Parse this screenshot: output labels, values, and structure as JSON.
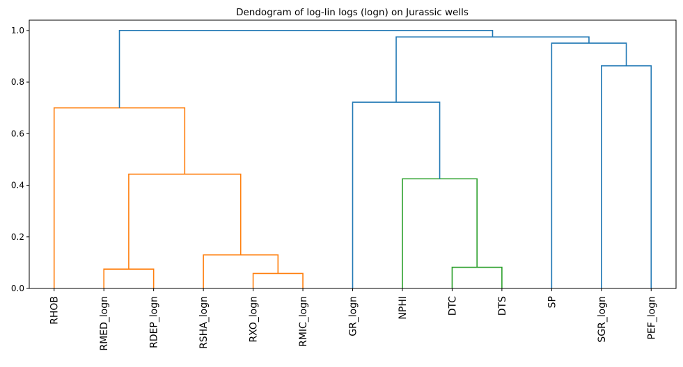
{
  "chart_data": {
    "type": "dendrogram",
    "title": "Dendogram of log-lin logs (logn) on Jurassic wells",
    "xlabel": "",
    "ylabel": "",
    "ylim": [
      0,
      1.04
    ],
    "yticks": [
      "0.0",
      "0.2",
      "0.4",
      "0.6",
      "0.8",
      "1.0"
    ],
    "ytick_values": [
      0,
      0.2,
      0.4,
      0.6,
      0.8,
      1.0
    ],
    "grid": false,
    "leaves": [
      "RHOB",
      "RMED_logn",
      "RDEP_logn",
      "RSHA_logn",
      "RXO_logn",
      "RMIC_logn",
      "GR_logn",
      "NPHI",
      "DTC",
      "DTS",
      "SP",
      "SGR_logn",
      "PEF_logn"
    ],
    "colors": {
      "orange": "#ff7f0e",
      "green": "#2ca02c",
      "blue": "#1f77b4"
    },
    "links": [
      {
        "id": "n0",
        "left": {
          "leaf": 1
        },
        "right": {
          "leaf": 2
        },
        "height": 0.075,
        "color": "orange"
      },
      {
        "id": "n1",
        "left": {
          "leaf": 4
        },
        "right": {
          "leaf": 5
        },
        "height": 0.058,
        "color": "orange"
      },
      {
        "id": "n2",
        "left": {
          "leaf": 3
        },
        "right": {
          "node": "n1"
        },
        "height": 0.13,
        "color": "orange"
      },
      {
        "id": "n3",
        "left": {
          "node": "n0"
        },
        "right": {
          "node": "n2"
        },
        "height": 0.443,
        "color": "orange"
      },
      {
        "id": "n4",
        "left": {
          "leaf": 0
        },
        "right": {
          "node": "n3"
        },
        "height": 0.7,
        "color": "orange"
      },
      {
        "id": "n5",
        "left": {
          "leaf": 8
        },
        "right": {
          "leaf": 9
        },
        "height": 0.082,
        "color": "green"
      },
      {
        "id": "n6",
        "left": {
          "leaf": 7
        },
        "right": {
          "node": "n5"
        },
        "height": 0.425,
        "color": "green"
      },
      {
        "id": "n7",
        "left": {
          "leaf": 6
        },
        "right": {
          "node": "n6"
        },
        "height": 0.722,
        "color": "blue"
      },
      {
        "id": "n8",
        "left": {
          "leaf": 11
        },
        "right": {
          "leaf": 12
        },
        "height": 0.863,
        "color": "blue"
      },
      {
        "id": "n9",
        "left": {
          "leaf": 10
        },
        "right": {
          "node": "n8"
        },
        "height": 0.951,
        "color": "blue"
      },
      {
        "id": "n10",
        "left": {
          "node": "n7"
        },
        "right": {
          "node": "n9"
        },
        "height": 0.975,
        "color": "blue"
      },
      {
        "id": "n11",
        "left": {
          "node": "n4"
        },
        "right": {
          "node": "n10"
        },
        "height": 1.0,
        "color": "blue"
      }
    ]
  }
}
